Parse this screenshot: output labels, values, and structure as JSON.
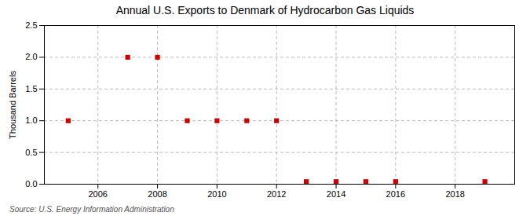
{
  "chart_data": {
    "type": "scatter",
    "title": "Annual U.S. Exports to Denmark of Hydrocarbon Gas Liquids",
    "ylabel": "Thousand Barrels",
    "annotations": [
      "Source: U.S. Energy Information Administration"
    ],
    "x": [
      2005,
      2007,
      2008,
      2009,
      2010,
      2011,
      2012,
      2013,
      2014,
      2015,
      2016,
      2019
    ],
    "values": [
      1.0,
      2.0,
      2.0,
      1.0,
      1.0,
      1.0,
      1.0,
      0.04,
      0.04,
      0.04,
      0.04,
      0.04
    ],
    "color": "#cc0000",
    "marker": "square",
    "xlim": [
      2004.2,
      2020
    ],
    "ylim": [
      0.0,
      2.5
    ],
    "xticks": [
      2006,
      2008,
      2010,
      2012,
      2014,
      2016,
      2018
    ],
    "yticks": [
      {
        "value": 0.0,
        "label": "0.0"
      },
      0.5,
      {
        "value": 1.0,
        "label": "1.0"
      },
      1.5,
      {
        "value": 2.0,
        "label": "2.0"
      },
      2.5
    ],
    "grid": true
  }
}
